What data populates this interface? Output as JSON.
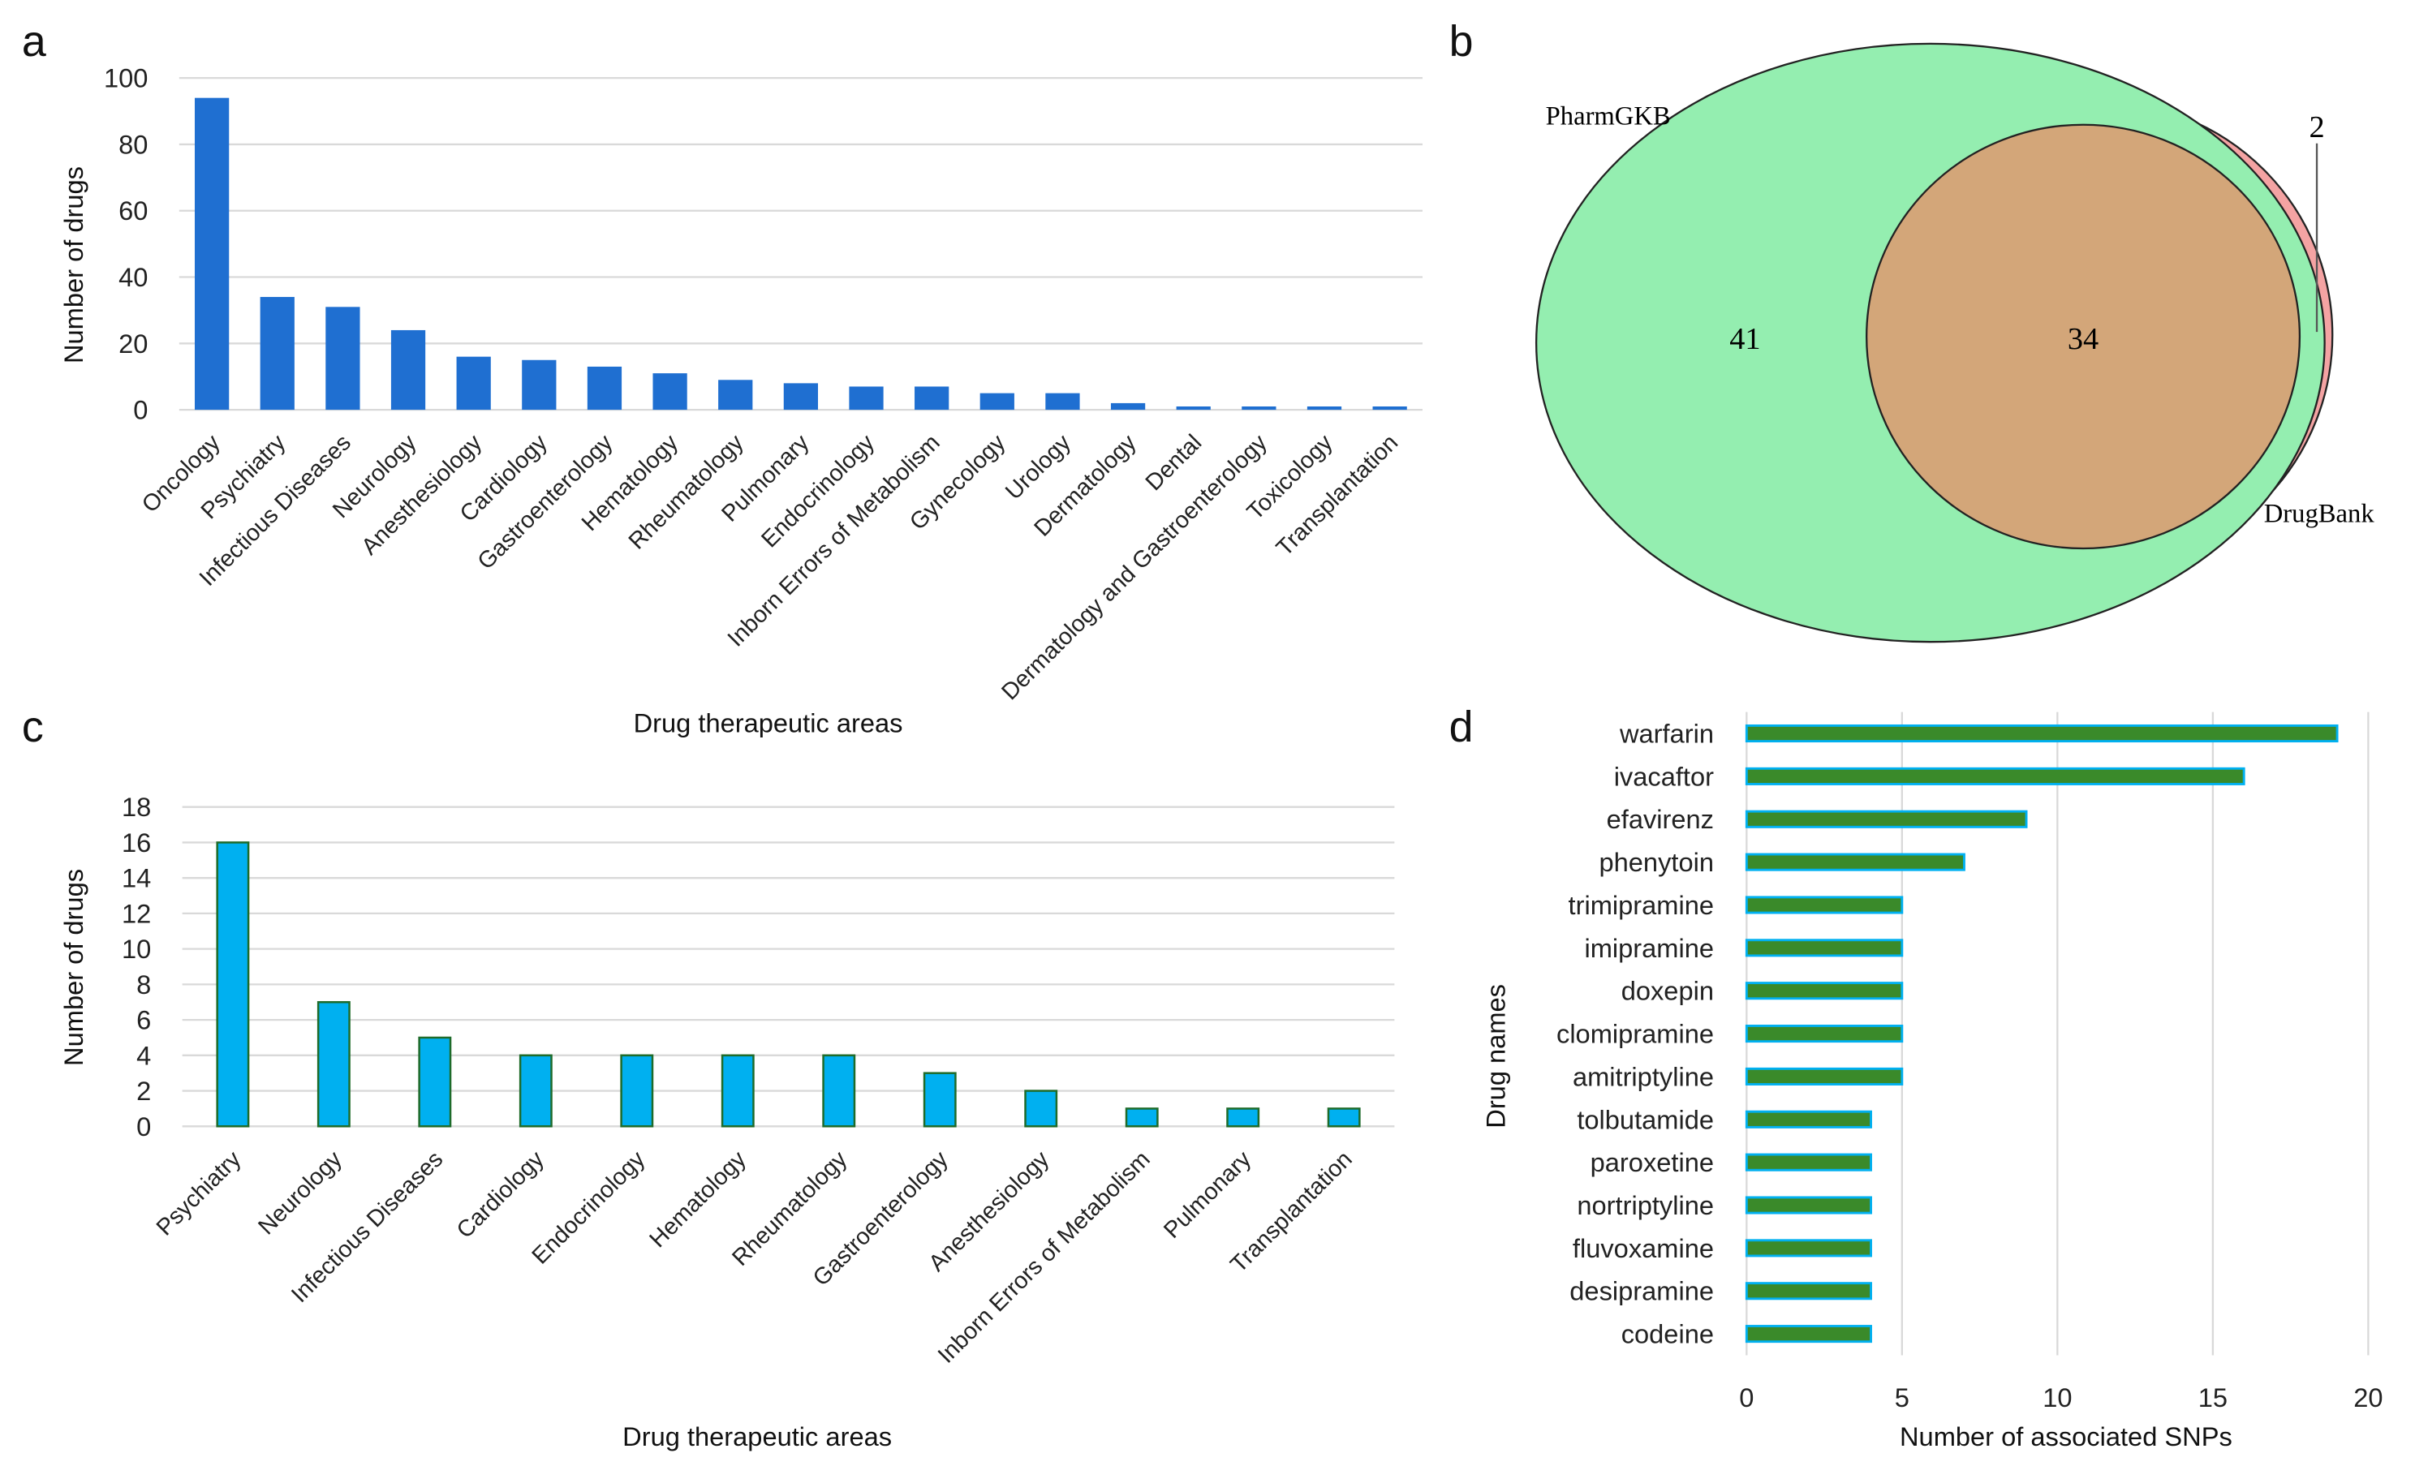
{
  "panels": {
    "a": "a",
    "b": "b",
    "c": "c",
    "d": "d"
  },
  "chart_data": [
    {
      "panel": "a",
      "type": "bar",
      "ylabel": "Number of drugs",
      "xlabel": "Drug therapeutic areas",
      "ylim": [
        0,
        100
      ],
      "yticks": [
        0,
        20,
        40,
        60,
        80,
        100
      ],
      "grid": true,
      "color": "#1f6fd1",
      "categories": [
        "Oncology",
        "Psychiatry",
        "Infectious Diseases",
        "Neurology",
        "Anesthesiology",
        "Cardiology",
        "Gastroenterology",
        "Hematology",
        "Rheumatology",
        "Pulmonary",
        "Endocrinology",
        "Inborn Errors of Metabolism",
        "Gynecology",
        "Urology",
        "Dermatology",
        "Dental",
        "Dermatology and Gastroenterology",
        "Toxicology",
        "Transplantation"
      ],
      "values": [
        94,
        34,
        31,
        24,
        16,
        15,
        13,
        11,
        9,
        8,
        7,
        7,
        5,
        5,
        2,
        1,
        1,
        1,
        1
      ]
    },
    {
      "panel": "b",
      "type": "venn",
      "sets": [
        {
          "name": "PharmGKB",
          "only": 41,
          "color": "#94eeb0"
        },
        {
          "name": "DrugBank",
          "only": 2,
          "color": "#f4a3a3"
        }
      ],
      "intersection": 34,
      "intersection_color": "#d3a679"
    },
    {
      "panel": "c",
      "type": "bar",
      "ylabel": "Number of drugs",
      "xlabel": "Drug therapeutic areas",
      "ylim": [
        0,
        18
      ],
      "yticks": [
        0,
        2,
        4,
        6,
        8,
        10,
        12,
        14,
        16,
        18
      ],
      "grid": true,
      "color": "#00b0f0",
      "edge_color": "#1e6b2a",
      "categories": [
        "Psychiatry",
        "Neurology",
        "Infectious Diseases",
        "Cardiology",
        "Endocrinology",
        "Hematology",
        "Rheumatology",
        "Gastroenterology",
        "Anesthesiology",
        "Inborn Errors of Metabolism",
        "Pulmonary",
        "Transplantation"
      ],
      "values": [
        16,
        7,
        5,
        4,
        4,
        4,
        4,
        3,
        2,
        1,
        1,
        1
      ]
    },
    {
      "panel": "d",
      "type": "bar",
      "orientation": "horizontal",
      "ylabel": "Drug names",
      "xlabel": "Number of associated SNPs",
      "xlim": [
        0,
        20
      ],
      "xticks": [
        0,
        5,
        10,
        15,
        20
      ],
      "grid": true,
      "color": "#3a8a2a",
      "edge_color": "#00b0f0",
      "categories": [
        "warfarin",
        "ivacaftor",
        "efavirenz",
        "phenytoin",
        "trimipramine",
        "imipramine",
        "doxepin",
        "clomipramine",
        "amitriptyline",
        "tolbutamide",
        "paroxetine",
        "nortriptyline",
        "fluvoxamine",
        "desipramine",
        "codeine"
      ],
      "values": [
        19,
        16,
        9,
        7,
        5,
        5,
        5,
        5,
        5,
        4,
        4,
        4,
        4,
        4,
        4
      ]
    }
  ]
}
